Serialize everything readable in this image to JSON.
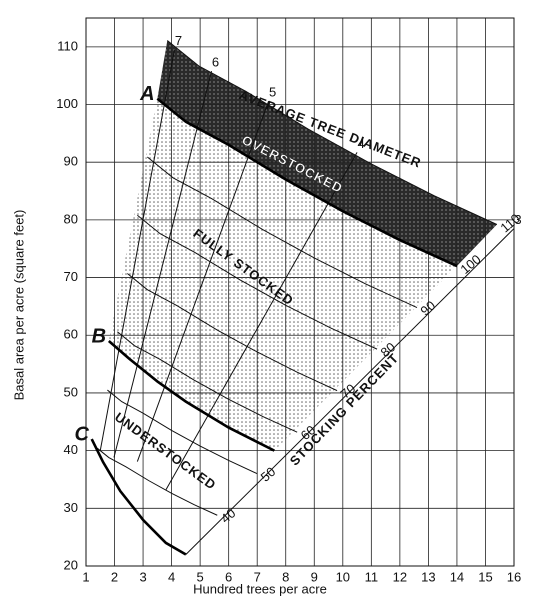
{
  "chart_data": {
    "type": "line",
    "x_label": "Hundred trees per acre",
    "y_label": "Basal area per acre (square feet)",
    "xlim": [
      1,
      16
    ],
    "ylim": [
      20,
      115
    ],
    "xticks": [
      1,
      2,
      3,
      4,
      5,
      6,
      7,
      8,
      9,
      10,
      11,
      12,
      13,
      14,
      15,
      16
    ],
    "yticks": [
      20,
      30,
      40,
      50,
      60,
      70,
      80,
      90,
      100,
      110
    ],
    "grid": true,
    "stocking_percent": [
      {
        "percent": 40,
        "x": [
          1.4,
          1.8,
          2.4,
          3.2,
          4,
          4.8,
          5.6
        ],
        "y": [
          40.4,
          38.8,
          37.2,
          34.8,
          32.6,
          30.6,
          28.8
        ]
      },
      {
        "percent": 50,
        "x": [
          1.75,
          2.25,
          3,
          4,
          5,
          6,
          7
        ],
        "y": [
          50.5,
          48.5,
          46.5,
          43.5,
          40.8,
          38.3,
          36
        ]
      },
      {
        "percent": 60,
        "x": [
          2.1,
          2.7,
          3.6,
          4.8,
          6,
          7.2,
          8.4
        ],
        "y": [
          60.6,
          58.2,
          55.8,
          52.2,
          48.9,
          45.9,
          43.2
        ]
      },
      {
        "percent": 70,
        "x": [
          2.45,
          3.15,
          4.2,
          5.6,
          7,
          8.4,
          9.8
        ],
        "y": [
          70.7,
          67.9,
          65.1,
          60.9,
          57.1,
          53.6,
          50.4
        ]
      },
      {
        "percent": 80,
        "x": [
          2.8,
          3.6,
          4.8,
          6.4,
          8,
          9.6,
          11.2
        ],
        "y": [
          80.8,
          77.6,
          74.4,
          69.6,
          65.2,
          61.2,
          57.6
        ]
      },
      {
        "percent": 90,
        "x": [
          3.15,
          4.05,
          5.4,
          7.2,
          9,
          10.8,
          12.6
        ],
        "y": [
          90.9,
          87.3,
          83.7,
          78.3,
          73.4,
          68.9,
          64.8
        ]
      },
      {
        "percent": 100,
        "x": [
          3.5,
          4.5,
          6,
          8,
          10,
          12,
          14
        ],
        "y": [
          101,
          97,
          93,
          87,
          81.5,
          76.5,
          72
        ]
      },
      {
        "percent": 110,
        "x": [
          3.85,
          4.95,
          6.6,
          8.8,
          11,
          13.2,
          15.4
        ],
        "y": [
          111.1,
          106.7,
          102.3,
          95.7,
          89.7,
          84.2,
          79.2
        ]
      }
    ],
    "diameters": [
      {
        "inches": 3,
        "x": [
          4.5,
          16
        ],
        "y": [
          22,
          78.5
        ]
      },
      {
        "inches": 4,
        "x": [
          3.8,
          10.5
        ],
        "y": [
          33.2,
          91.7
        ]
      },
      {
        "inches": 5,
        "x": [
          2.8,
          7.4
        ],
        "y": [
          38.1,
          100.6
        ]
      },
      {
        "inches": 6,
        "x": [
          1.98,
          5.4
        ],
        "y": [
          38.8,
          105.8
        ]
      },
      {
        "inches": 7,
        "x": [
          1.5,
          4.1
        ],
        "y": [
          40,
          109.5
        ]
      }
    ],
    "lines": [
      {
        "name": "A",
        "x": [
          3.5,
          4.5,
          6,
          8,
          10,
          12,
          14
        ],
        "y": [
          101,
          97,
          93,
          87,
          81.5,
          76.5,
          72
        ]
      },
      {
        "name": "B",
        "x": [
          1.8,
          2.5,
          3.5,
          4.5,
          6,
          7.6
        ],
        "y": [
          59,
          56,
          52,
          48.5,
          44,
          40
        ]
      },
      {
        "name": "C",
        "x": [
          1.2,
          1.6,
          2.2,
          3,
          3.8,
          4.5
        ],
        "y": [
          42,
          38,
          33,
          28,
          24,
          22
        ]
      }
    ],
    "annotations": [
      "AVERAGE TREE DIAMETER",
      "OVERSTOCKED",
      "FULLY STOCKED",
      "UNDERSTOCKED",
      "STOCKING PERCENT"
    ]
  }
}
